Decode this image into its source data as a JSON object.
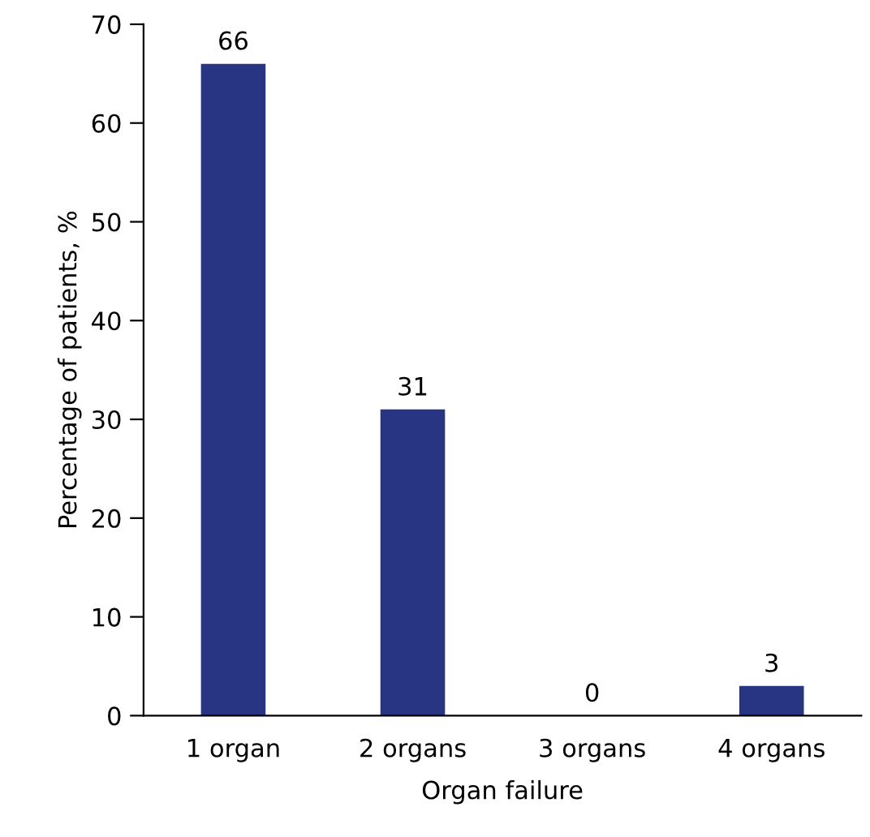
{
  "chart_data": {
    "type": "bar",
    "xlabel": "Organ failure",
    "ylabel": "Percentage of patients, %",
    "categories": [
      "1 organ",
      "2 organs",
      "3 organs",
      "4 organs"
    ],
    "values": [
      66,
      31,
      0,
      3
    ],
    "color": "#283583",
    "ylim": [
      0,
      70
    ],
    "yticks": [
      0,
      10,
      20,
      30,
      40,
      50,
      60,
      70
    ],
    "grid": false,
    "data_labels": true
  }
}
